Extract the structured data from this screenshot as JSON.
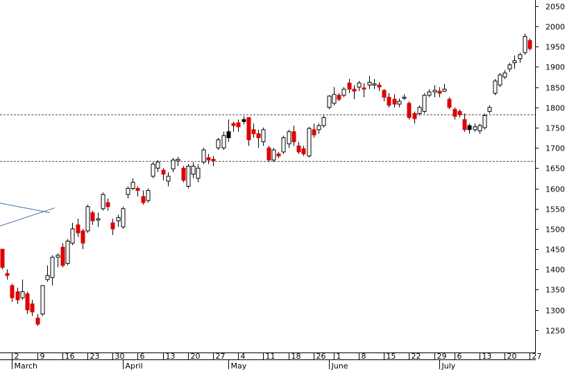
{
  "chart_data": {
    "type": "candlestick",
    "title": "",
    "xlabel": "",
    "ylabel": "",
    "ylim": [
      1195,
      2065
    ],
    "y_ticks": [
      1250,
      1300,
      1350,
      1400,
      1450,
      1500,
      1550,
      1600,
      1650,
      1700,
      1750,
      1800,
      1850,
      1900,
      1950,
      2000,
      2050
    ],
    "x_day_labels": [
      {
        "label": "2",
        "index": 2
      },
      {
        "label": "9",
        "index": 7
      },
      {
        "label": "16",
        "index": 12
      },
      {
        "label": "23",
        "index": 17
      },
      {
        "label": "30",
        "index": 22
      },
      {
        "label": "6",
        "index": 27
      },
      {
        "label": "13",
        "index": 32
      },
      {
        "label": "20",
        "index": 37
      },
      {
        "label": "27",
        "index": 42
      },
      {
        "label": "4",
        "index": 47
      },
      {
        "label": "11",
        "index": 52
      },
      {
        "label": "18",
        "index": 57
      },
      {
        "label": "26",
        "index": 62
      },
      {
        "label": "1",
        "index": 66
      },
      {
        "label": "8",
        "index": 71
      },
      {
        "label": "15",
        "index": 76
      },
      {
        "label": "22",
        "index": 81
      },
      {
        "label": "29",
        "index": 86
      },
      {
        "label": "6",
        "index": 90
      },
      {
        "label": "13",
        "index": 95
      },
      {
        "label": "20",
        "index": 100
      },
      {
        "label": "27",
        "index": 105
      }
    ],
    "x_month_labels": [
      {
        "label": "March",
        "index": 2
      },
      {
        "label": "April",
        "index": 24
      },
      {
        "label": "May",
        "index": 45
      },
      {
        "label": "June",
        "index": 65
      },
      {
        "label": "July",
        "index": 87
      }
    ],
    "horizontal_lines": [
      1783,
      1668
    ],
    "trend_lines": [
      {
        "from": [
          -1,
          1565
        ],
        "to": [
          9.5,
          1540
        ]
      },
      {
        "from": [
          -1,
          1505
        ],
        "to": [
          10.5,
          1552
        ]
      }
    ],
    "candles": [
      {
        "o": 1450,
        "h": 1450,
        "l": 1400,
        "c": 1405,
        "color": "red"
      },
      {
        "o": 1390,
        "h": 1400,
        "l": 1375,
        "c": 1385,
        "color": "red"
      },
      {
        "o": 1360,
        "h": 1365,
        "l": 1320,
        "c": 1330,
        "color": "red"
      },
      {
        "o": 1345,
        "h": 1355,
        "l": 1315,
        "c": 1325,
        "color": "red"
      },
      {
        "o": 1330,
        "h": 1375,
        "l": 1325,
        "c": 1345,
        "color": "white"
      },
      {
        "o": 1340,
        "h": 1345,
        "l": 1290,
        "c": 1300,
        "color": "red"
      },
      {
        "o": 1315,
        "h": 1325,
        "l": 1285,
        "c": 1295,
        "color": "red"
      },
      {
        "o": 1280,
        "h": 1290,
        "l": 1260,
        "c": 1265,
        "color": "red"
      },
      {
        "o": 1290,
        "h": 1360,
        "l": 1285,
        "c": 1360,
        "color": "white"
      },
      {
        "o": 1375,
        "h": 1410,
        "l": 1370,
        "c": 1385,
        "color": "white"
      },
      {
        "o": 1380,
        "h": 1435,
        "l": 1360,
        "c": 1430,
        "color": "white"
      },
      {
        "o": 1430,
        "h": 1440,
        "l": 1405,
        "c": 1435,
        "color": "white"
      },
      {
        "o": 1455,
        "h": 1465,
        "l": 1405,
        "c": 1410,
        "color": "red"
      },
      {
        "o": 1415,
        "h": 1475,
        "l": 1410,
        "c": 1470,
        "color": "white"
      },
      {
        "o": 1465,
        "h": 1515,
        "l": 1460,
        "c": 1500,
        "color": "white"
      },
      {
        "o": 1510,
        "h": 1525,
        "l": 1480,
        "c": 1490,
        "color": "red"
      },
      {
        "o": 1495,
        "h": 1500,
        "l": 1450,
        "c": 1465,
        "color": "red"
      },
      {
        "o": 1495,
        "h": 1560,
        "l": 1490,
        "c": 1555,
        "color": "white"
      },
      {
        "o": 1540,
        "h": 1545,
        "l": 1510,
        "c": 1520,
        "color": "red"
      },
      {
        "o": 1525,
        "h": 1540,
        "l": 1505,
        "c": 1522,
        "color": "white"
      },
      {
        "o": 1550,
        "h": 1590,
        "l": 1545,
        "c": 1585,
        "color": "white"
      },
      {
        "o": 1565,
        "h": 1575,
        "l": 1545,
        "c": 1555,
        "color": "red"
      },
      {
        "o": 1515,
        "h": 1525,
        "l": 1485,
        "c": 1500,
        "color": "red"
      },
      {
        "o": 1520,
        "h": 1535,
        "l": 1505,
        "c": 1528,
        "color": "white"
      },
      {
        "o": 1505,
        "h": 1555,
        "l": 1500,
        "c": 1550,
        "color": "white"
      },
      {
        "o": 1585,
        "h": 1605,
        "l": 1575,
        "c": 1600,
        "color": "white"
      },
      {
        "o": 1600,
        "h": 1625,
        "l": 1595,
        "c": 1615,
        "color": "white"
      },
      {
        "o": 1595,
        "h": 1605,
        "l": 1580,
        "c": 1600,
        "color": "red"
      },
      {
        "o": 1580,
        "h": 1595,
        "l": 1560,
        "c": 1565,
        "color": "red"
      },
      {
        "o": 1570,
        "h": 1600,
        "l": 1565,
        "c": 1595,
        "color": "white"
      },
      {
        "o": 1630,
        "h": 1665,
        "l": 1625,
        "c": 1660,
        "color": "white"
      },
      {
        "o": 1650,
        "h": 1670,
        "l": 1640,
        "c": 1665,
        "color": "white"
      },
      {
        "o": 1645,
        "h": 1650,
        "l": 1620,
        "c": 1635,
        "color": "red"
      },
      {
        "o": 1630,
        "h": 1640,
        "l": 1605,
        "c": 1618,
        "color": "white"
      },
      {
        "o": 1648,
        "h": 1675,
        "l": 1640,
        "c": 1670,
        "color": "white"
      },
      {
        "o": 1668,
        "h": 1678,
        "l": 1655,
        "c": 1672,
        "color": "white"
      },
      {
        "o": 1650,
        "h": 1655,
        "l": 1615,
        "c": 1620,
        "color": "red"
      },
      {
        "o": 1605,
        "h": 1660,
        "l": 1600,
        "c": 1655,
        "color": "white"
      },
      {
        "o": 1635,
        "h": 1665,
        "l": 1625,
        "c": 1655,
        "color": "white"
      },
      {
        "o": 1625,
        "h": 1660,
        "l": 1615,
        "c": 1650,
        "color": "white"
      },
      {
        "o": 1665,
        "h": 1700,
        "l": 1660,
        "c": 1695,
        "color": "white"
      },
      {
        "o": 1670,
        "h": 1685,
        "l": 1660,
        "c": 1676,
        "color": "red"
      },
      {
        "o": 1672,
        "h": 1680,
        "l": 1655,
        "c": 1668,
        "color": "red"
      },
      {
        "o": 1700,
        "h": 1725,
        "l": 1695,
        "c": 1720,
        "color": "white"
      },
      {
        "o": 1700,
        "h": 1740,
        "l": 1695,
        "c": 1730,
        "color": "white"
      },
      {
        "o": 1725,
        "h": 1770,
        "l": 1715,
        "c": 1740,
        "color": "black"
      },
      {
        "o": 1760,
        "h": 1765,
        "l": 1740,
        "c": 1755,
        "color": "red"
      },
      {
        "o": 1752,
        "h": 1770,
        "l": 1740,
        "c": 1762,
        "color": "red"
      },
      {
        "o": 1765,
        "h": 1778,
        "l": 1758,
        "c": 1770,
        "color": "black"
      },
      {
        "o": 1775,
        "h": 1775,
        "l": 1705,
        "c": 1720,
        "color": "red"
      },
      {
        "o": 1745,
        "h": 1760,
        "l": 1725,
        "c": 1735,
        "color": "red"
      },
      {
        "o": 1735,
        "h": 1745,
        "l": 1700,
        "c": 1725,
        "color": "red"
      },
      {
        "o": 1715,
        "h": 1750,
        "l": 1705,
        "c": 1745,
        "color": "white"
      },
      {
        "o": 1700,
        "h": 1705,
        "l": 1665,
        "c": 1670,
        "color": "red"
      },
      {
        "o": 1670,
        "h": 1700,
        "l": 1665,
        "c": 1695,
        "color": "white"
      },
      {
        "o": 1685,
        "h": 1690,
        "l": 1675,
        "c": 1680,
        "color": "red"
      },
      {
        "o": 1690,
        "h": 1730,
        "l": 1685,
        "c": 1725,
        "color": "white"
      },
      {
        "o": 1710,
        "h": 1745,
        "l": 1700,
        "c": 1740,
        "color": "white"
      },
      {
        "o": 1740,
        "h": 1755,
        "l": 1705,
        "c": 1715,
        "color": "red"
      },
      {
        "o": 1705,
        "h": 1715,
        "l": 1685,
        "c": 1690,
        "color": "red"
      },
      {
        "o": 1698,
        "h": 1705,
        "l": 1680,
        "c": 1685,
        "color": "red"
      },
      {
        "o": 1680,
        "h": 1752,
        "l": 1676,
        "c": 1748,
        "color": "white"
      },
      {
        "o": 1745,
        "h": 1760,
        "l": 1725,
        "c": 1732,
        "color": "red"
      },
      {
        "o": 1745,
        "h": 1760,
        "l": 1735,
        "c": 1755,
        "color": "white"
      },
      {
        "o": 1755,
        "h": 1780,
        "l": 1750,
        "c": 1775,
        "color": "white"
      },
      {
        "o": 1800,
        "h": 1830,
        "l": 1795,
        "c": 1828,
        "color": "white"
      },
      {
        "o": 1810,
        "h": 1850,
        "l": 1805,
        "c": 1832,
        "color": "white"
      },
      {
        "o": 1830,
        "h": 1835,
        "l": 1815,
        "c": 1820,
        "color": "red"
      },
      {
        "o": 1830,
        "h": 1850,
        "l": 1825,
        "c": 1845,
        "color": "white"
      },
      {
        "o": 1860,
        "h": 1870,
        "l": 1835,
        "c": 1845,
        "color": "red"
      },
      {
        "o": 1845,
        "h": 1855,
        "l": 1820,
        "c": 1840,
        "color": "red"
      },
      {
        "o": 1850,
        "h": 1865,
        "l": 1840,
        "c": 1860,
        "color": "white"
      },
      {
        "o": 1848,
        "h": 1860,
        "l": 1825,
        "c": 1845,
        "color": "red"
      },
      {
        "o": 1855,
        "h": 1878,
        "l": 1845,
        "c": 1862,
        "color": "white"
      },
      {
        "o": 1855,
        "h": 1870,
        "l": 1845,
        "c": 1858,
        "color": "white"
      },
      {
        "o": 1855,
        "h": 1862,
        "l": 1840,
        "c": 1850,
        "color": "red"
      },
      {
        "o": 1842,
        "h": 1845,
        "l": 1815,
        "c": 1825,
        "color": "red"
      },
      {
        "o": 1825,
        "h": 1835,
        "l": 1800,
        "c": 1805,
        "color": "red"
      },
      {
        "o": 1820,
        "h": 1832,
        "l": 1800,
        "c": 1808,
        "color": "red"
      },
      {
        "o": 1808,
        "h": 1822,
        "l": 1800,
        "c": 1815,
        "color": "white"
      },
      {
        "o": 1825,
        "h": 1832,
        "l": 1818,
        "c": 1825,
        "color": "white"
      },
      {
        "o": 1810,
        "h": 1815,
        "l": 1770,
        "c": 1775,
        "color": "red"
      },
      {
        "o": 1785,
        "h": 1790,
        "l": 1760,
        "c": 1772,
        "color": "red"
      },
      {
        "o": 1785,
        "h": 1805,
        "l": 1780,
        "c": 1800,
        "color": "white"
      },
      {
        "o": 1790,
        "h": 1835,
        "l": 1785,
        "c": 1830,
        "color": "white"
      },
      {
        "o": 1830,
        "h": 1845,
        "l": 1825,
        "c": 1838,
        "color": "white"
      },
      {
        "o": 1838,
        "h": 1855,
        "l": 1825,
        "c": 1842,
        "color": "white"
      },
      {
        "o": 1840,
        "h": 1850,
        "l": 1825,
        "c": 1835,
        "color": "red"
      },
      {
        "o": 1840,
        "h": 1858,
        "l": 1838,
        "c": 1845,
        "color": "white"
      },
      {
        "o": 1820,
        "h": 1825,
        "l": 1795,
        "c": 1800,
        "color": "red"
      },
      {
        "o": 1795,
        "h": 1800,
        "l": 1770,
        "c": 1778,
        "color": "red"
      },
      {
        "o": 1790,
        "h": 1795,
        "l": 1775,
        "c": 1782,
        "color": "red"
      },
      {
        "o": 1770,
        "h": 1785,
        "l": 1740,
        "c": 1745,
        "color": "red"
      },
      {
        "o": 1755,
        "h": 1760,
        "l": 1735,
        "c": 1745,
        "color": "black"
      },
      {
        "o": 1745,
        "h": 1760,
        "l": 1740,
        "c": 1752,
        "color": "white"
      },
      {
        "o": 1742,
        "h": 1760,
        "l": 1735,
        "c": 1755,
        "color": "white"
      },
      {
        "o": 1750,
        "h": 1785,
        "l": 1745,
        "c": 1780,
        "color": "white"
      },
      {
        "o": 1790,
        "h": 1805,
        "l": 1785,
        "c": 1800,
        "color": "white"
      },
      {
        "o": 1835,
        "h": 1870,
        "l": 1830,
        "c": 1865,
        "color": "white"
      },
      {
        "o": 1855,
        "h": 1885,
        "l": 1850,
        "c": 1880,
        "color": "white"
      },
      {
        "o": 1875,
        "h": 1892,
        "l": 1870,
        "c": 1885,
        "color": "white"
      },
      {
        "o": 1895,
        "h": 1910,
        "l": 1888,
        "c": 1905,
        "color": "white"
      },
      {
        "o": 1910,
        "h": 1928,
        "l": 1895,
        "c": 1915,
        "color": "white"
      },
      {
        "o": 1920,
        "h": 1935,
        "l": 1910,
        "c": 1930,
        "color": "white"
      },
      {
        "o": 1935,
        "h": 1982,
        "l": 1930,
        "c": 1975,
        "color": "white"
      },
      {
        "o": 1965,
        "h": 1970,
        "l": 1940,
        "c": 1945,
        "color": "red"
      }
    ]
  }
}
